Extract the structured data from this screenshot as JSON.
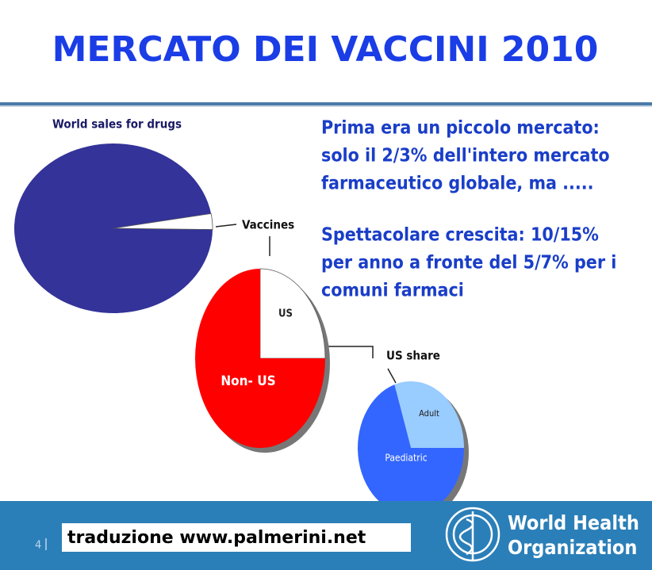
{
  "title": "MERCATO DEI VACCINI 2010",
  "text": {
    "paragraphs": [
      {
        "lines": [
          "Prima era un piccolo mercato:",
          "solo il 2/3% dell'intero mercato",
          "farmaceutico globale, ma ....."
        ]
      },
      {
        "lines": [
          "Spettacolare crescita: 10/15%",
          "per anno a fronte del 5/7% per i",
          "comuni farmaci"
        ]
      }
    ]
  },
  "footer": {
    "credit": "traduzione www.palmerini.net",
    "page": "4",
    "logo_lines": [
      "World Health",
      "Organization"
    ]
  },
  "chart_data": [
    {
      "type": "pie",
      "title": "World sales for drugs",
      "categories": [
        null,
        "Vaccines"
      ],
      "values": [
        97,
        3
      ],
      "colors": [
        "#333399",
        "#ffffff"
      ]
    },
    {
      "type": "pie",
      "categories": [
        "US",
        "Non- US"
      ],
      "values": [
        25,
        75
      ],
      "colors": [
        "#ffffff",
        "#ff0000"
      ]
    },
    {
      "type": "pie",
      "title": "US share",
      "categories": [
        "Adult",
        "Paediatric"
      ],
      "values": [
        30,
        70
      ],
      "colors": [
        "#99ccff",
        "#3366ff"
      ]
    }
  ]
}
